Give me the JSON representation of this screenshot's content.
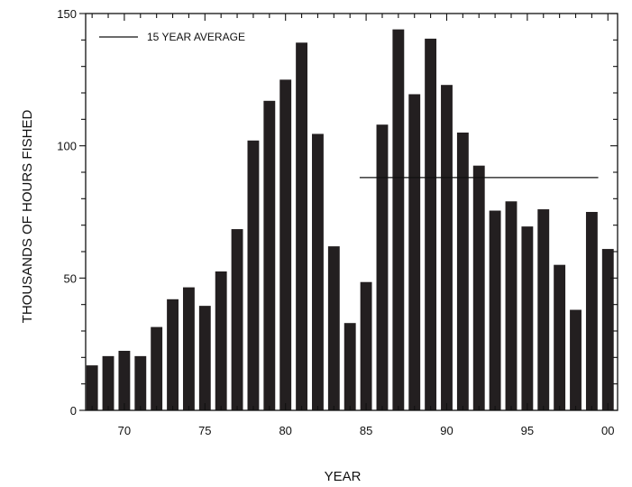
{
  "chart_data": {
    "type": "bar",
    "title": "",
    "xlabel": "YEAR",
    "ylabel": "THOUSANDS OF HOURS FISHED",
    "x": [
      1968,
      1969,
      1970,
      1971,
      1972,
      1973,
      1974,
      1975,
      1976,
      1977,
      1978,
      1979,
      1980,
      1981,
      1982,
      1983,
      1984,
      1985,
      1986,
      1987,
      1988,
      1989,
      1990,
      1991,
      1992,
      1993,
      1994,
      1995,
      1996,
      1997,
      1998,
      1999,
      2000
    ],
    "values": [
      17,
      20.5,
      22.5,
      20.5,
      31.5,
      42,
      46.5,
      39.5,
      52.5,
      68.5,
      102,
      117,
      125,
      139,
      104.5,
      62,
      33,
      48.5,
      108,
      144,
      119.5,
      140.5,
      123,
      105,
      92.5,
      75.5,
      79,
      69.5,
      76,
      55,
      38,
      75,
      61
    ],
    "xticks": [
      {
        "year": 1970,
        "label": "70"
      },
      {
        "year": 1975,
        "label": "75"
      },
      {
        "year": 1980,
        "label": "80"
      },
      {
        "year": 1985,
        "label": "85"
      },
      {
        "year": 1990,
        "label": "90"
      },
      {
        "year": 1995,
        "label": "95"
      },
      {
        "year": 2000,
        "label": "00"
      }
    ],
    "yticks": [
      {
        "value": 0,
        "label": "0"
      },
      {
        "value": 50,
        "label": "50"
      },
      {
        "value": 100,
        "label": "100"
      },
      {
        "value": 150,
        "label": "150"
      }
    ],
    "xlim": [
      1967.6,
      2000.6
    ],
    "ylim": [
      0,
      150
    ],
    "average_line": {
      "label": "15 YEAR AVERAGE",
      "value": 88,
      "from_year": 1984.6,
      "to_year": 1999.4
    },
    "legend_placement": "top-left",
    "grid": false,
    "bar_color": "#231f20",
    "axis_color": "#111111"
  }
}
